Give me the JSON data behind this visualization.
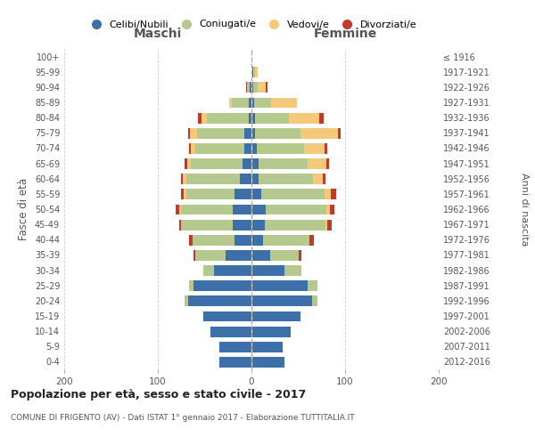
{
  "age_groups": [
    "0-4",
    "5-9",
    "10-14",
    "15-19",
    "20-24",
    "25-29",
    "30-34",
    "35-39",
    "40-44",
    "45-49",
    "50-54",
    "55-59",
    "60-64",
    "65-69",
    "70-74",
    "75-79",
    "80-84",
    "85-89",
    "90-94",
    "95-99",
    "100+"
  ],
  "birth_years": [
    "2012-2016",
    "2007-2011",
    "2002-2006",
    "1997-2001",
    "1992-1996",
    "1987-1991",
    "1982-1986",
    "1977-1981",
    "1972-1976",
    "1967-1971",
    "1962-1966",
    "1957-1961",
    "1952-1956",
    "1947-1951",
    "1942-1946",
    "1937-1941",
    "1932-1936",
    "1927-1931",
    "1922-1926",
    "1917-1921",
    "≤ 1916"
  ],
  "male_celibi": [
    35,
    35,
    45,
    52,
    68,
    62,
    40,
    28,
    18,
    20,
    20,
    18,
    12,
    10,
    8,
    8,
    3,
    3,
    2,
    0,
    0
  ],
  "male_coniugati": [
    0,
    0,
    0,
    0,
    4,
    6,
    12,
    32,
    45,
    55,
    55,
    52,
    58,
    55,
    52,
    50,
    45,
    18,
    3,
    0,
    0
  ],
  "male_vedovi": [
    0,
    0,
    0,
    0,
    0,
    0,
    0,
    0,
    0,
    0,
    2,
    2,
    3,
    4,
    5,
    8,
    5,
    4,
    0,
    0,
    0
  ],
  "male_divorziati": [
    0,
    0,
    0,
    0,
    0,
    0,
    0,
    3,
    5,
    3,
    5,
    4,
    3,
    3,
    3,
    3,
    5,
    0,
    2,
    0,
    0
  ],
  "fem_nubili": [
    35,
    33,
    42,
    52,
    65,
    60,
    35,
    20,
    12,
    14,
    15,
    10,
    8,
    8,
    6,
    4,
    4,
    3,
    2,
    2,
    0
  ],
  "fem_coniugate": [
    0,
    0,
    0,
    0,
    5,
    10,
    18,
    30,
    50,
    65,
    65,
    68,
    58,
    52,
    50,
    48,
    36,
    18,
    5,
    2,
    0
  ],
  "fem_vedove": [
    0,
    0,
    0,
    0,
    0,
    0,
    0,
    0,
    0,
    2,
    4,
    7,
    10,
    20,
    22,
    40,
    32,
    28,
    8,
    3,
    0
  ],
  "fem_divorziate": [
    0,
    0,
    0,
    0,
    0,
    0,
    0,
    3,
    5,
    5,
    5,
    5,
    3,
    3,
    3,
    3,
    5,
    0,
    2,
    0,
    0
  ],
  "colors": {
    "celibi": "#3d6fa8",
    "coniugati": "#b5c98e",
    "vedovi": "#f5c97a",
    "divorziati": "#c0392b"
  },
  "xlim": 200,
  "title": "Popolazione per età, sesso e stato civile - 2017",
  "subtitle": "COMUNE DI FRIGENTO (AV) - Dati ISTAT 1° gennaio 2017 - Elaborazione TUTTITALIA.IT",
  "ylabel": "Fasce di età",
  "ylabel_right": "Anni di nascita",
  "xlabel_maschi": "Maschi",
  "xlabel_femmine": "Femmine",
  "legend_labels": [
    "Celibi/Nubili",
    "Coniugati/e",
    "Vedovi/e",
    "Divorziati/e"
  ]
}
